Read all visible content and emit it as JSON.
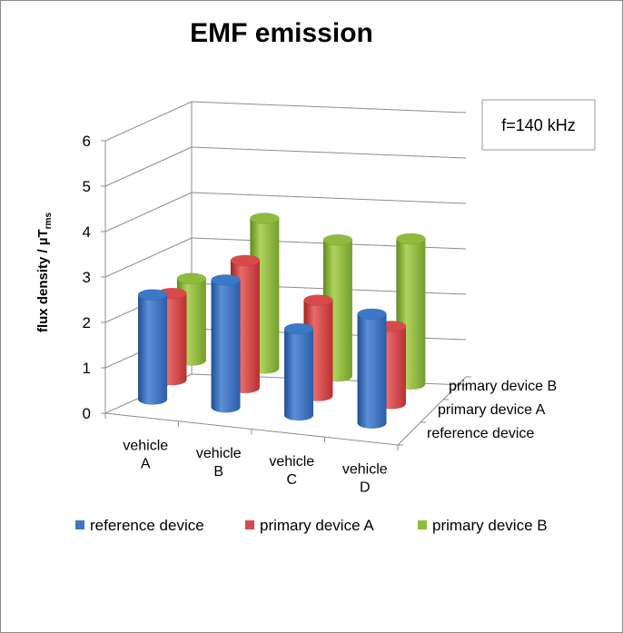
{
  "chart_data": {
    "type": "bar",
    "variant": "3d-cylinder",
    "title": "EMF emission",
    "ylabel": "flux density / µT",
    "ylabel_subscript": "rms",
    "annotation": "f=140 kHz",
    "ylim": [
      0,
      6
    ],
    "yticks": [
      "0",
      "1",
      "2",
      "3",
      "4",
      "5",
      "6"
    ],
    "categories": [
      [
        "vehicle",
        "A"
      ],
      [
        "vehicle",
        "B"
      ],
      [
        "vehicle",
        "C"
      ],
      [
        "vehicle",
        "D"
      ]
    ],
    "series": [
      {
        "name": "reference device",
        "color": "#3c78c8",
        "values": [
          2.3,
          2.8,
          1.9,
          2.4
        ]
      },
      {
        "name": "primary device A",
        "color": "#d84a4a",
        "values": [
          1.9,
          2.8,
          2.1,
          1.7
        ]
      },
      {
        "name": "primary device B",
        "color": "#8fbb3d",
        "values": [
          1.8,
          3.3,
          3.0,
          3.2
        ]
      }
    ],
    "legend_position": "bottom",
    "grid": true
  }
}
